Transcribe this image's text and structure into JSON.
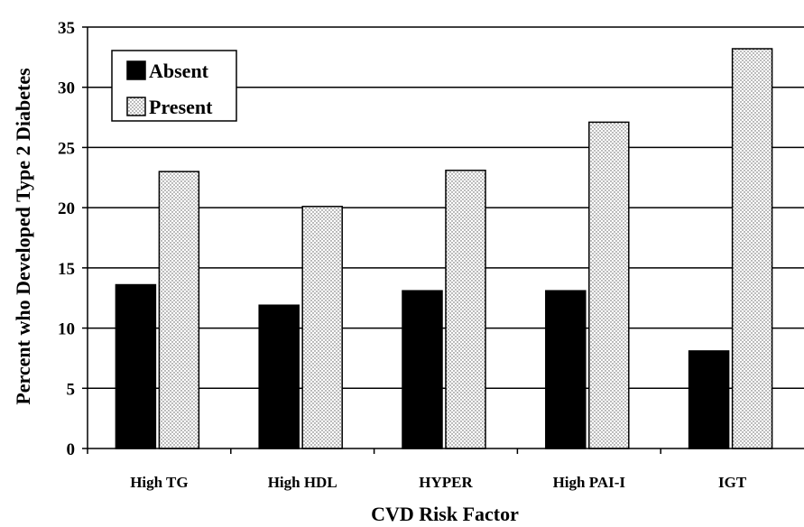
{
  "chart_data": {
    "type": "bar",
    "xlabel": "CVD Risk Factor",
    "ylabel": "Percent who Developed Type 2 Diabetes",
    "categories": [
      "High TG",
      "High HDL",
      "HYPER",
      "High PAI-I",
      "IGT"
    ],
    "series": [
      {
        "name": "Absent",
        "values": [
          13.6,
          11.9,
          13.1,
          13.1,
          8.1
        ],
        "color": "#000000",
        "pattern": "solid"
      },
      {
        "name": "Present",
        "values": [
          23.0,
          20.1,
          23.1,
          27.1,
          33.2
        ],
        "color": "#ffffff",
        "pattern": "dotted"
      }
    ],
    "ylim": [
      0,
      35
    ],
    "yticks": [
      0,
      5,
      10,
      15,
      20,
      25,
      30,
      35
    ],
    "grid": true,
    "legend_position": "top-left"
  }
}
